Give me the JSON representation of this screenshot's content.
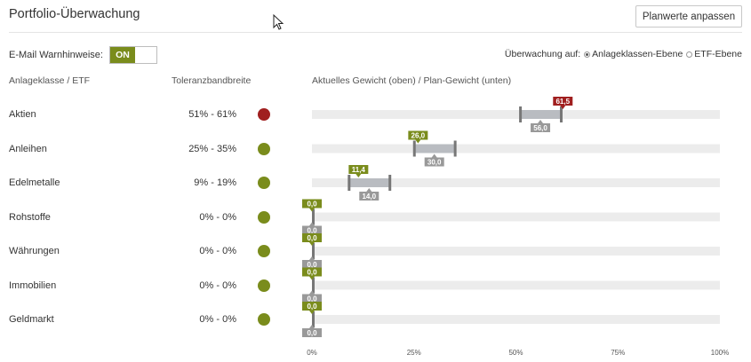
{
  "header": {
    "title": "Portfolio-Überwachung",
    "adjust_button": "Planwerte anpassen"
  },
  "settings": {
    "email_warn_label": "E-Mail Warnhinweise:",
    "toggle_label": "ON",
    "monitoring_label": "Überwachung auf:",
    "options": [
      {
        "label": "Anlageklassen-Ebene",
        "selected": true
      },
      {
        "label": "ETF-Ebene",
        "selected": false
      }
    ]
  },
  "columns": {
    "asset_class": "Anlageklasse / ETF",
    "tolerance": "Toleranzbandbreite",
    "weights": "Aktuelles Gewicht (oben) / Plan-Gewicht (unten)"
  },
  "colors": {
    "red": "#a01f1f",
    "green": "#7a8c1c",
    "gray_flag": "#999999",
    "track": "#ececec",
    "band": "#b9bcc1"
  },
  "chart_data": {
    "type": "range-bar",
    "axis": {
      "min": 0,
      "max": 100,
      "ticks": [
        0,
        25,
        50,
        75,
        100
      ],
      "tick_labels": [
        "0%",
        "25%",
        "50%",
        "75%",
        "100%"
      ]
    },
    "rows": [
      {
        "label": "Aktien",
        "band_text": "51% - 61%",
        "band": [
          51,
          61
        ],
        "current": 61.5,
        "current_label": "61,5",
        "plan": 56.0,
        "plan_label": "56,0",
        "status": "red"
      },
      {
        "label": "Anleihen",
        "band_text": "25% - 35%",
        "band": [
          25,
          35
        ],
        "current": 26.0,
        "current_label": "26,0",
        "plan": 30.0,
        "plan_label": "30,0",
        "status": "green"
      },
      {
        "label": "Edelmetalle",
        "band_text": "9% - 19%",
        "band": [
          9,
          19
        ],
        "current": 11.4,
        "current_label": "11,4",
        "plan": 14.0,
        "plan_label": "14,0",
        "status": "green"
      },
      {
        "label": "Rohstoffe",
        "band_text": "0% - 0%",
        "band": [
          0,
          0
        ],
        "current": 0,
        "current_label": "0,0",
        "plan": 0,
        "plan_label": "0,0",
        "status": "green"
      },
      {
        "label": "Währungen",
        "band_text": "0% - 0%",
        "band": [
          0,
          0
        ],
        "current": 0,
        "current_label": "0,0",
        "plan": 0,
        "plan_label": "0,0",
        "status": "green"
      },
      {
        "label": "Immobilien",
        "band_text": "0% - 0%",
        "band": [
          0,
          0
        ],
        "current": 0,
        "current_label": "0,0",
        "plan": 0,
        "plan_label": "0,0",
        "status": "green"
      },
      {
        "label": "Geldmarkt",
        "band_text": "0% - 0%",
        "band": [
          0,
          0
        ],
        "current": 0,
        "current_label": "0,0",
        "plan": 0,
        "plan_label": "0,0",
        "status": "green"
      }
    ]
  }
}
